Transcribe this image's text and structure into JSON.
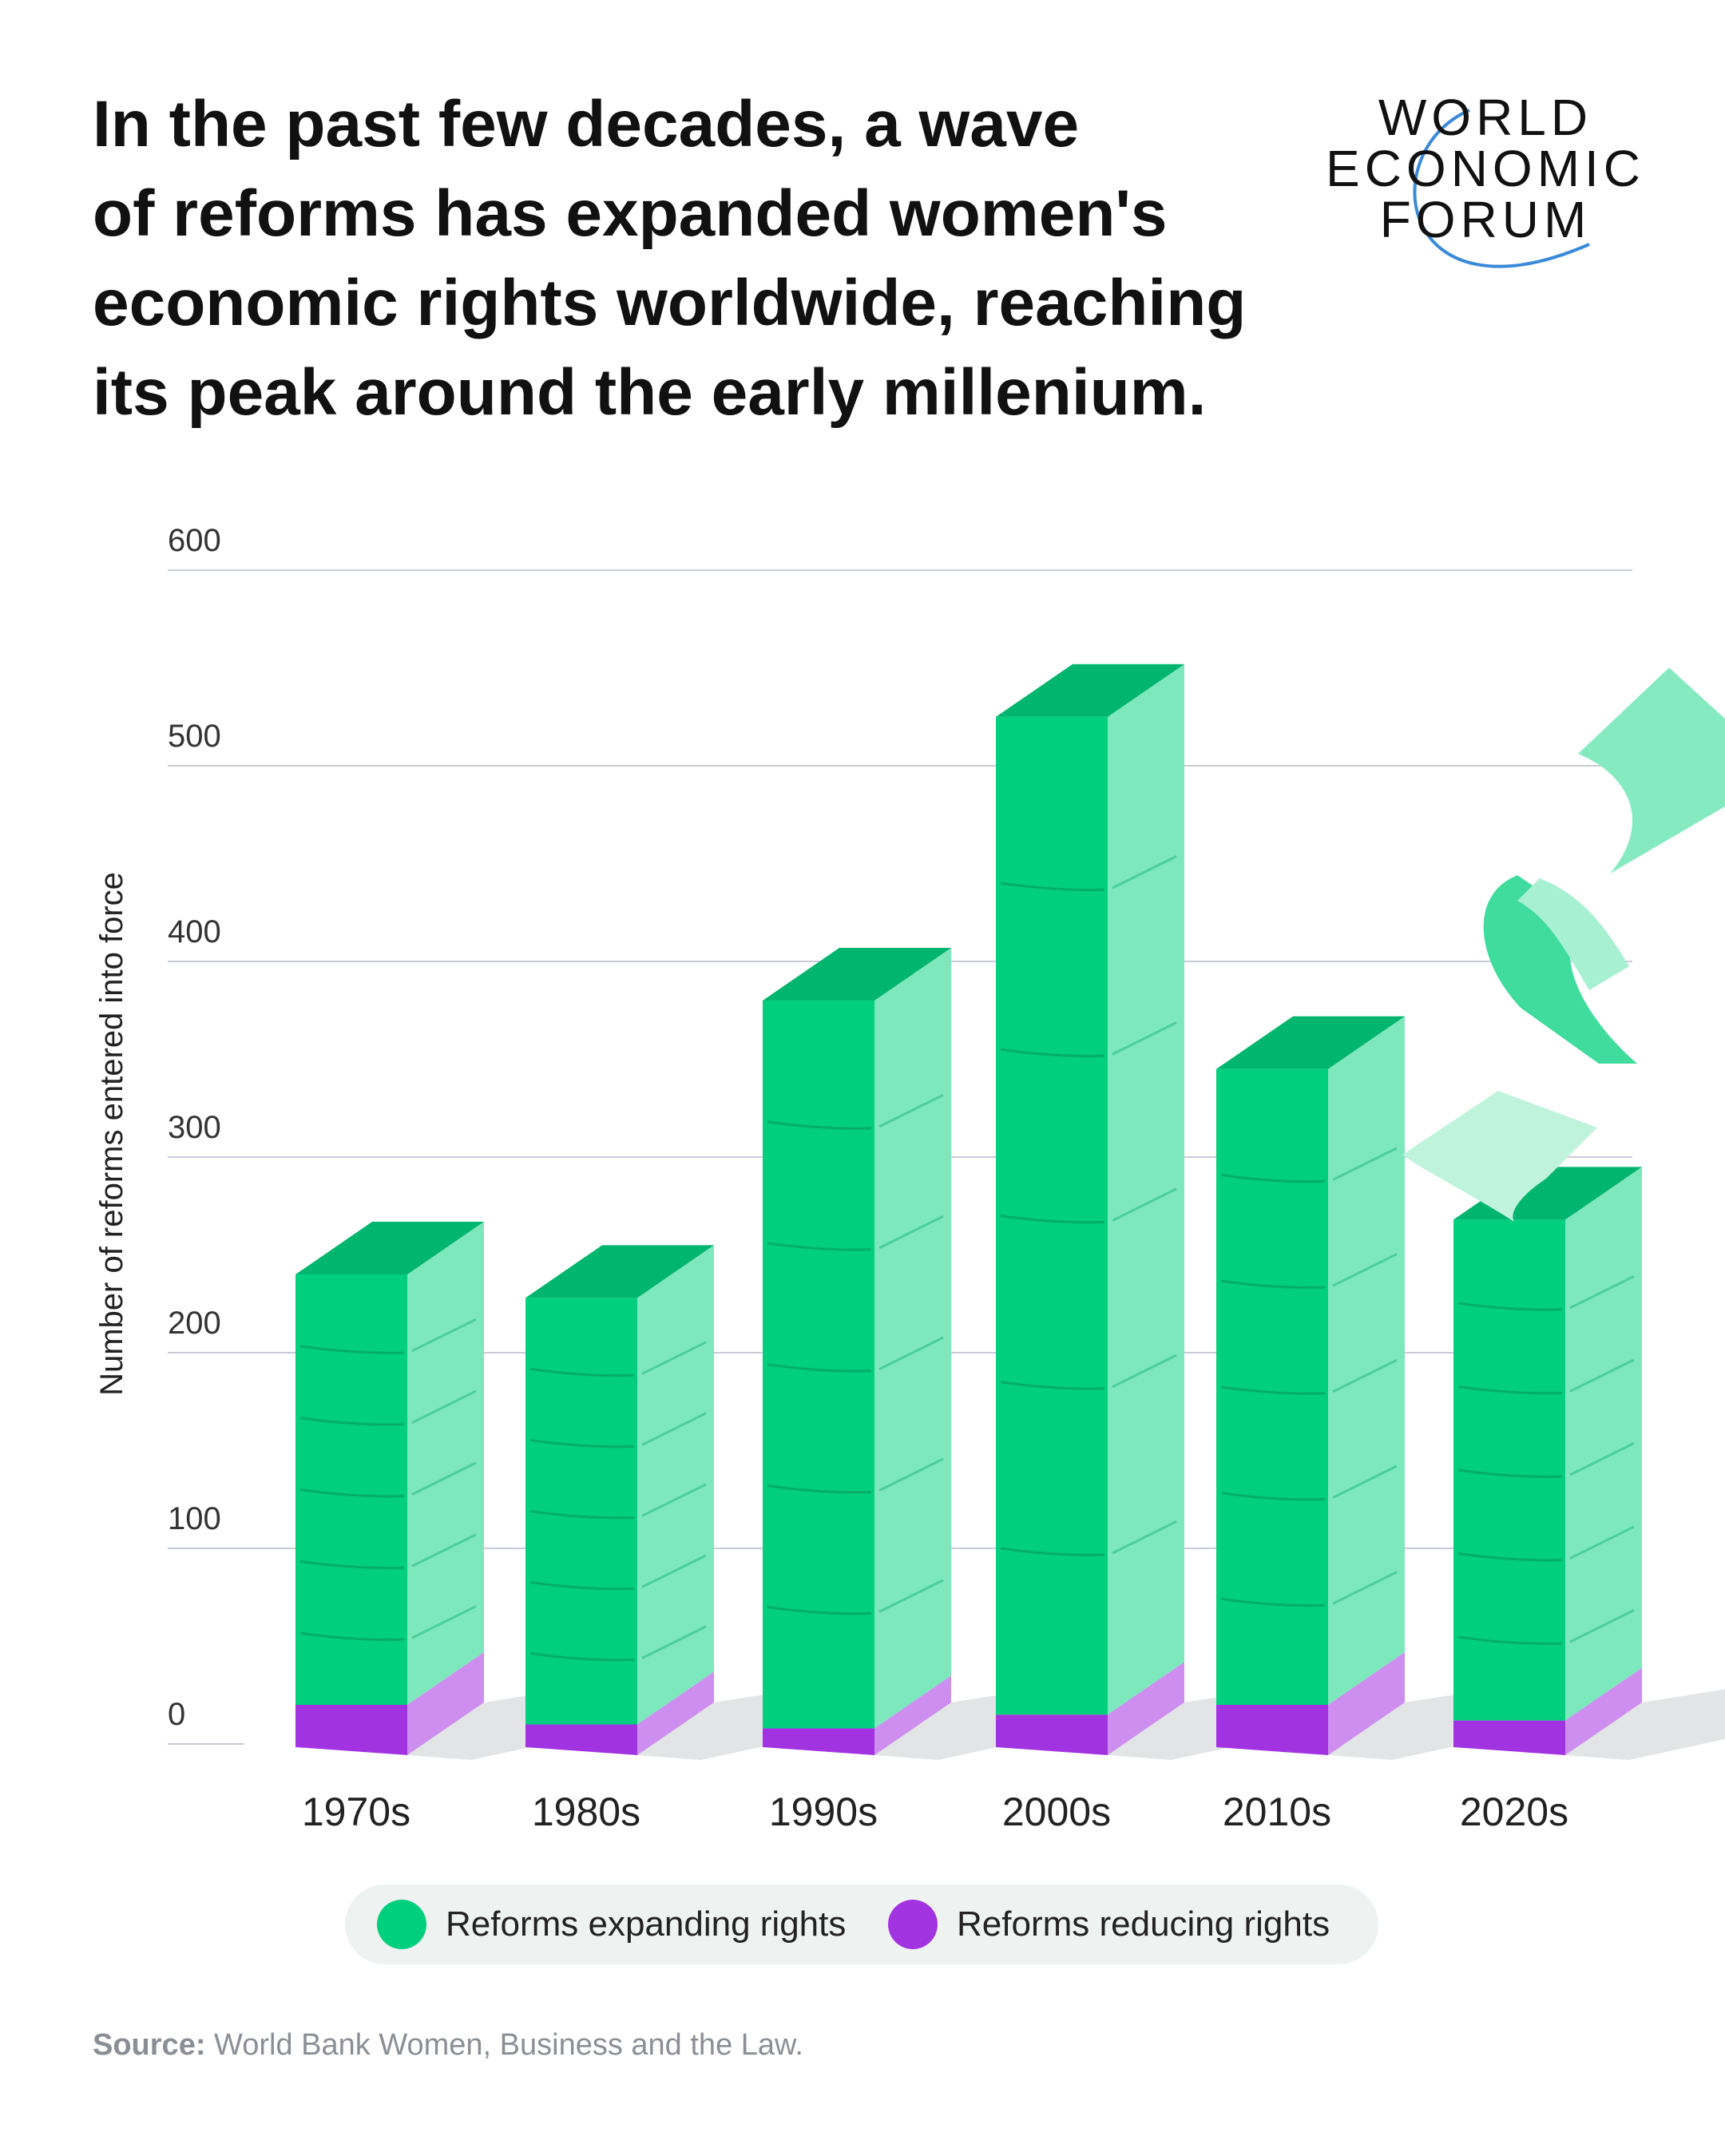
{
  "title_lines": [
    "In the past few decades, a wave",
    "of reforms has expanded women's",
    "economic rights worldwide, reaching",
    "its peak around the early millenium."
  ],
  "logo": {
    "lines": [
      "WORLD",
      "ECONOMIC",
      "FORUM"
    ]
  },
  "legend": {
    "items": [
      {
        "label": "Reforms expanding rights",
        "color": "#00d07e"
      },
      {
        "label": "Reforms reducing rights",
        "color": "#a233e0"
      }
    ]
  },
  "source": {
    "label": "Source:",
    "text": "World Bank Women, Business and the Law."
  },
  "chart_data": {
    "type": "bar",
    "ylabel": "Number of reforms entered into force",
    "ylim": [
      0,
      600
    ],
    "yticks": [
      0,
      100,
      200,
      300,
      400,
      500,
      600
    ],
    "categories": [
      "1970s",
      "1980s",
      "1990s",
      "2000s",
      "2010s",
      "2020s"
    ],
    "series": [
      {
        "name": "Reforms expanding rights",
        "values": [
          220,
          218,
          372,
          510,
          325,
          256
        ]
      },
      {
        "name": "Reforms reducing rights",
        "values": [
          20,
          10,
          8,
          15,
          20,
          12
        ]
      }
    ],
    "grid": true,
    "legend_position": "bottom",
    "colors": {
      "expand_front": "#00d07e",
      "expand_side": "#7ee8bd",
      "expand_top": "#00b56e",
      "reduce_front": "#a233e0",
      "reduce_side": "#cd8ef0",
      "shadow": "#e2e4e6",
      "grid": "#c9ccd8"
    }
  }
}
